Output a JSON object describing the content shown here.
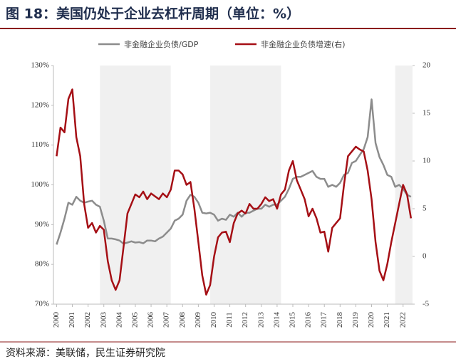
{
  "chart_data": {
    "type": "line",
    "title": "图 18：美国仍处于企业去杠杆周期（单位：%）",
    "source": "资料来源：美联储，民生证券研究院",
    "xlim": [
      1999.8,
      2022.6
    ],
    "xticks": [
      2000,
      2001,
      2002,
      2003,
      2004,
      2005,
      2006,
      2007,
      2008,
      2009,
      2010,
      2011,
      2012,
      2013,
      2014,
      2015,
      2016,
      2017,
      2018,
      2019,
      2020,
      2021,
      2022
    ],
    "ylim": [
      70,
      130
    ],
    "yticks": [
      {
        "value": 70,
        "label": "70%"
      },
      {
        "value": 80,
        "label": "80%"
      },
      {
        "value": 90,
        "label": "90%"
      },
      {
        "value": 100,
        "label": "100%"
      },
      {
        "value": 110,
        "label": "110%"
      },
      {
        "value": 120,
        "label": "120%"
      },
      {
        "value": 130,
        "label": "130%"
      }
    ],
    "y2lim": [
      -5,
      20
    ],
    "y2ticks": [
      -5,
      0,
      5,
      10,
      15,
      20
    ],
    "shaded_ranges": [
      [
        2002.75,
        2007.25
      ],
      [
        2009.75,
        2014.25
      ],
      [
        2021.5,
        2022.6
      ]
    ],
    "shade_color": "#f0f0f0",
    "x": [
      2000,
      2000.25,
      2000.5,
      2000.75,
      2001,
      2001.25,
      2001.5,
      2001.75,
      2002,
      2002.25,
      2002.5,
      2002.75,
      2003,
      2003.25,
      2003.5,
      2003.75,
      2004,
      2004.25,
      2004.5,
      2004.75,
      2005,
      2005.25,
      2005.5,
      2005.75,
      2006,
      2006.25,
      2006.5,
      2006.75,
      2007,
      2007.25,
      2007.5,
      2007.75,
      2008,
      2008.25,
      2008.5,
      2008.75,
      2009,
      2009.25,
      2009.5,
      2009.75,
      2010,
      2010.25,
      2010.5,
      2010.75,
      2011,
      2011.25,
      2011.5,
      2011.75,
      2012,
      2012.25,
      2012.5,
      2012.75,
      2013,
      2013.25,
      2013.5,
      2013.75,
      2014,
      2014.25,
      2014.5,
      2014.75,
      2015,
      2015.25,
      2015.5,
      2015.75,
      2016,
      2016.25,
      2016.5,
      2016.75,
      2017,
      2017.25,
      2017.5,
      2017.75,
      2018,
      2018.25,
      2018.5,
      2018.75,
      2019,
      2019.25,
      2019.5,
      2019.75,
      2020,
      2020.25,
      2020.5,
      2020.75,
      2021,
      2021.25,
      2021.5,
      2021.75,
      2022,
      2022.25,
      2022.5
    ],
    "series": [
      {
        "name": "非金融企业负债/GDP",
        "color": "#8c8c8c",
        "values": [
          85,
          88,
          91.5,
          95.5,
          95,
          97,
          96,
          95.5,
          95.8,
          96,
          95,
          94.5,
          91,
          86.5,
          86.5,
          86.3,
          86,
          85.2,
          85.5,
          85.8,
          85.5,
          85.6,
          85.3,
          86,
          86,
          85.8,
          86.5,
          87,
          88,
          89,
          91,
          91.5,
          92.5,
          96,
          97.5,
          97,
          95.5,
          93,
          92.8,
          93,
          92.5,
          91,
          91.5,
          91.2,
          92.5,
          92,
          93,
          92,
          93,
          93,
          93.5,
          94,
          94,
          95,
          94.5,
          95,
          95,
          96,
          97,
          99,
          101.5,
          102,
          102,
          102.5,
          103,
          103.5,
          102,
          101.5,
          101.5,
          99.5,
          100,
          99.5,
          100.5,
          102.5,
          103,
          105.5,
          106,
          107.5,
          109,
          112,
          121.5,
          110.5,
          107,
          105,
          102.5,
          102,
          99.5,
          100,
          99,
          97.5,
          97
        ]
      },
      {
        "name": "非金融企业负债增速(右)",
        "color": "#a50f15",
        "axis": "y2",
        "values": [
          10.5,
          13.5,
          13,
          16.5,
          17.5,
          12.5,
          10.5,
          5.5,
          3,
          3.5,
          2.5,
          3.2,
          2.8,
          -0.5,
          -2.5,
          -3.5,
          -2.5,
          1,
          4.5,
          5.5,
          6.5,
          6.2,
          6.8,
          6,
          6.6,
          6.3,
          6,
          6.6,
          6.2,
          7,
          9,
          9,
          8.6,
          7.5,
          7.8,
          5,
          1.5,
          -2,
          -4,
          -3,
          0,
          2,
          2.5,
          2.6,
          1.5,
          3.5,
          4.5,
          4.8,
          4.5,
          5.5,
          5,
          5,
          5.5,
          6.2,
          5.8,
          6,
          5,
          6.5,
          7,
          9,
          10,
          8,
          7,
          6,
          4.2,
          5,
          4,
          2.5,
          2.6,
          0.5,
          3,
          3.5,
          4,
          7.5,
          10.5,
          11,
          11.5,
          11.2,
          11,
          9,
          6,
          1.5,
          -1.5,
          -2.5,
          -0.8,
          1.5,
          3.5,
          5.5,
          7.5,
          6.5,
          4
        ]
      }
    ]
  }
}
